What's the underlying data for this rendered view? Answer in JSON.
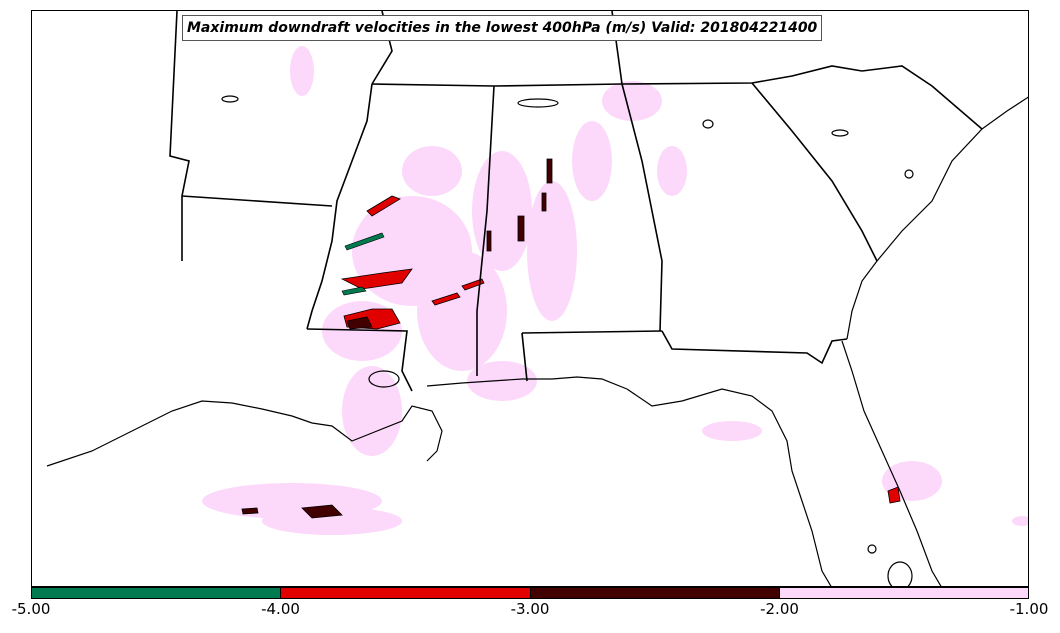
{
  "title": "Maximum downdraft velocities in the lowest 400hPa (m/s) Valid: 201804221400",
  "colorbar": {
    "ticks": [
      "-5.00",
      "-4.00",
      "-3.00",
      "-2.00",
      "-1.00"
    ],
    "bins": [
      {
        "min": -5.0,
        "max": -4.0,
        "color": "#007a4e"
      },
      {
        "min": -4.0,
        "max": -3.0,
        "color": "#e00000"
      },
      {
        "min": -3.0,
        "max": -2.0,
        "color": "#420000"
      },
      {
        "min": -2.0,
        "max": -1.0,
        "color": "#fcd9fa"
      }
    ]
  },
  "colors": {
    "coastline": "#000000",
    "state_borders": "#000000",
    "light_downdraft": "#fcd9fa",
    "moderate_downdraft": "#e00000",
    "strong_downdraft": "#420000",
    "extreme_downdraft": "#007a4e"
  }
}
